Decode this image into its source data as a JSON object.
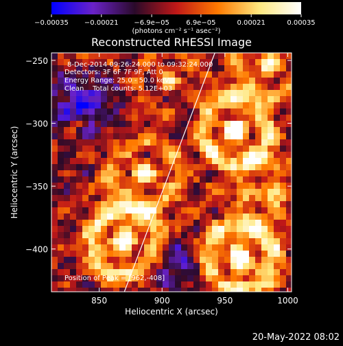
{
  "chart_data": {
    "type": "heatmap",
    "title": "Reconstructed RHESSI Image",
    "xlabel": "Heliocentric X (arcsec)",
    "ylabel": "Heliocentric Y (arcsec)",
    "xlim": [
      812,
      1003
    ],
    "ylim": [
      -434,
      -244
    ],
    "x_ticks": [
      850,
      900,
      950,
      1000
    ],
    "x_tick_labels": [
      "850",
      "900",
      "950",
      "1000"
    ],
    "y_ticks": [
      -250,
      -300,
      -350,
      -400
    ],
    "y_tick_labels": [
      "−250",
      "−300",
      "−350",
      "−400"
    ],
    "colorbar": {
      "range": [
        -0.00035,
        0.00035
      ],
      "ticks": [
        -0.00035,
        -0.00021,
        -6.9e-05,
        6.9e-05,
        0.00021,
        0.00035
      ],
      "tick_labels": [
        "−0.00035",
        "−0.00021",
        "−6.9e−05",
        "6.9e−05",
        "0.00021",
        "0.00035"
      ],
      "unit_label": "(photons cm⁻² s⁻¹ asec⁻²)",
      "colors": [
        "#0000ff",
        "#6a22c8",
        "#2a0a2a",
        "#c01818",
        "#ff7a00",
        "#ffe880",
        "#ffffff"
      ]
    },
    "info_lines": [
      "8-Dec-2014 09:26:24.000 to 09:32:24.000",
      "Detectors: 3F 6F 7F 9F, Att 0",
      "Energy Range: 25.0 - 50.0 keV",
      "Clean    Total counts: 5.12E+03"
    ],
    "peak_label": "Position of Peak = [962,-408]",
    "limb_line": {
      "x": [
        870,
        942
      ],
      "y": [
        -434,
        -244
      ]
    },
    "hot_spots": [
      {
        "x": 962,
        "y": -408,
        "amp": 1.0,
        "sigma": 24
      },
      {
        "x": 870,
        "y": -395,
        "amp": 0.85,
        "sigma": 26
      },
      {
        "x": 958,
        "y": -305,
        "amp": 0.9,
        "sigma": 24
      },
      {
        "x": 885,
        "y": -340,
        "amp": 0.6,
        "sigma": 22
      },
      {
        "x": 985,
        "y": -252,
        "amp": 0.65,
        "sigma": 18
      },
      {
        "x": 905,
        "y": -268,
        "amp": 0.55,
        "sigma": 18
      },
      {
        "x": 830,
        "y": -300,
        "amp": 0.45,
        "sigma": 16
      },
      {
        "x": 990,
        "y": -355,
        "amp": 0.6,
        "sigma": 18
      },
      {
        "x": 840,
        "y": -248,
        "amp": 0.4,
        "sigma": 14
      }
    ],
    "cold_spots": [
      {
        "x": 835,
        "y": -285,
        "amp": 0.9,
        "sigma": 18
      },
      {
        "x": 912,
        "y": -412,
        "amp": 0.7,
        "sigma": 16
      },
      {
        "x": 920,
        "y": -290,
        "amp": 0.4,
        "sigma": 14
      }
    ]
  },
  "footer": {
    "timestamp": "20-May-2022 08:02"
  }
}
